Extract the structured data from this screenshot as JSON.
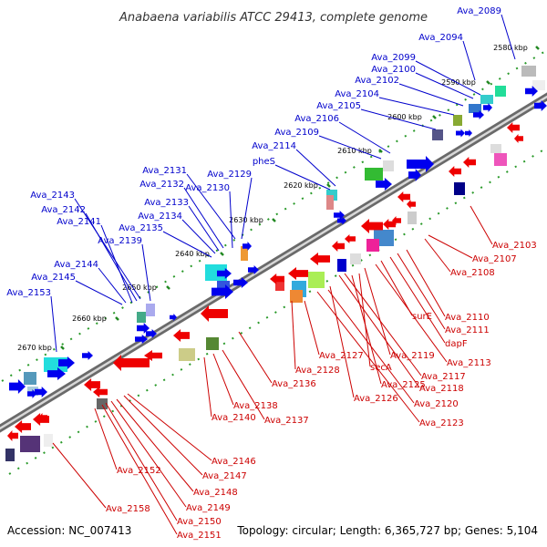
{
  "title": "Anabaena variabilis ATCC 29413, complete genome",
  "accession_text": "Accession: NC_007413",
  "summary_text": "Topology: circular; Length: 6,365,727 bp; Genes: 5,104",
  "colors": {
    "forward_label": "#0000cc",
    "reverse_label": "#cc0000",
    "forward_arrow": "#0000ee",
    "reverse_arrow": "#ee0000",
    "backbone": "#888888",
    "tick": "#228822"
  },
  "kbp_marks": [
    {
      "label": "2580 kbp"
    },
    {
      "label": "2590 kbp"
    },
    {
      "label": "2600 kbp"
    },
    {
      "label": "2610 kbp"
    },
    {
      "label": "2620 kbp"
    },
    {
      "label": "2630 kbp"
    },
    {
      "label": "2640 kbp"
    },
    {
      "label": "2650 kbp"
    },
    {
      "label": "2660 kbp"
    },
    {
      "label": "2670 kbp"
    }
  ],
  "forward_genes": [
    {
      "name": "Ava_2089"
    },
    {
      "name": "Ava_2094"
    },
    {
      "name": "Ava_2099"
    },
    {
      "name": "Ava_2100"
    },
    {
      "name": "Ava_2102"
    },
    {
      "name": "Ava_2104"
    },
    {
      "name": "Ava_2105"
    },
    {
      "name": "Ava_2106"
    },
    {
      "name": "Ava_2109"
    },
    {
      "name": "Ava_2114"
    },
    {
      "name": "pheS"
    },
    {
      "name": "Ava_2131"
    },
    {
      "name": "Ava_2129"
    },
    {
      "name": "Ava_2132"
    },
    {
      "name": "Ava_2130"
    },
    {
      "name": "Ava_2133"
    },
    {
      "name": "Ava_2134"
    },
    {
      "name": "Ava_2135"
    },
    {
      "name": "Ava_2143"
    },
    {
      "name": "Ava_2142"
    },
    {
      "name": "Ava_2141"
    },
    {
      "name": "Ava_2139"
    },
    {
      "name": "Ava_2144"
    },
    {
      "name": "Ava_2145"
    },
    {
      "name": "Ava_2153"
    }
  ],
  "reverse_genes": [
    {
      "name": "Ava_2103"
    },
    {
      "name": "Ava_2107"
    },
    {
      "name": "Ava_2108"
    },
    {
      "name": "Ava_2110"
    },
    {
      "name": "Ava_2111"
    },
    {
      "name": "dapF"
    },
    {
      "name": "surE"
    },
    {
      "name": "Ava_2113"
    },
    {
      "name": "Ava_2127"
    },
    {
      "name": "Ava_2119"
    },
    {
      "name": "Ava_2128"
    },
    {
      "name": "secA"
    },
    {
      "name": "Ava_2117"
    },
    {
      "name": "Ava_2136"
    },
    {
      "name": "Ava_2125"
    },
    {
      "name": "Ava_2118"
    },
    {
      "name": "Ava_2126"
    },
    {
      "name": "Ava_2120"
    },
    {
      "name": "Ava_2138"
    },
    {
      "name": "Ava_2123"
    },
    {
      "name": "Ava_2140"
    },
    {
      "name": "Ava_2137"
    },
    {
      "name": "Ava_2146"
    },
    {
      "name": "Ava_2152"
    },
    {
      "name": "Ava_2147"
    },
    {
      "name": "Ava_2148"
    },
    {
      "name": "Ava_2149"
    },
    {
      "name": "Ava_2158"
    },
    {
      "name": "Ava_2150"
    },
    {
      "name": "Ava_2151"
    }
  ]
}
